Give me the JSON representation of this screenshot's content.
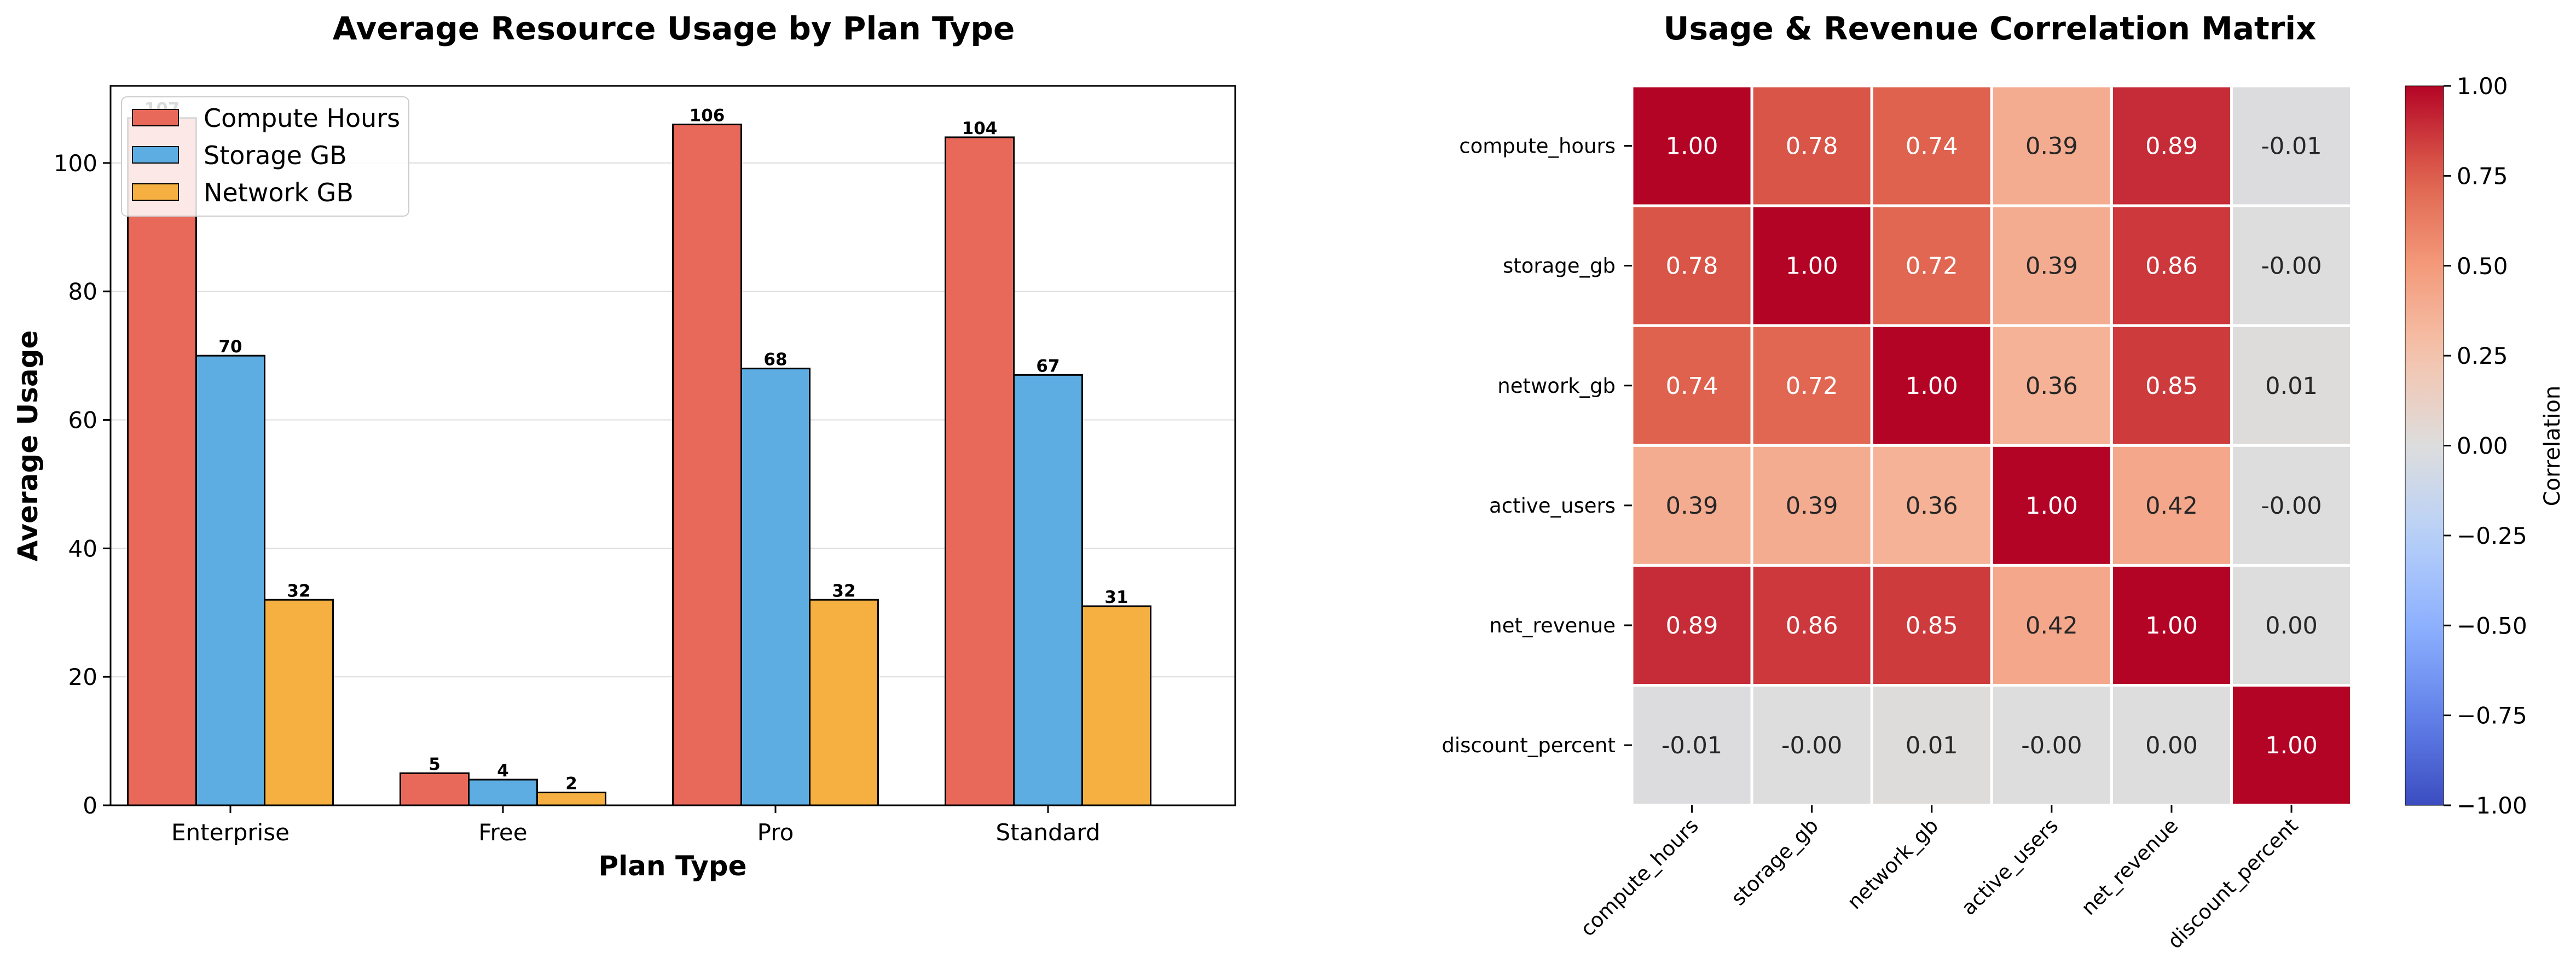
{
  "chart_data": [
    {
      "type": "bar",
      "title": "Average Resource Usage by Plan Type",
      "xlabel": "Plan Type",
      "ylabel": "Average Usage",
      "categories": [
        "Enterprise",
        "Free",
        "Pro",
        "Standard"
      ],
      "series": [
        {
          "name": "Compute Hours",
          "color": "#e8695a",
          "values": [
            107,
            5,
            106,
            104
          ],
          "labels": [
            "107",
            "5",
            "106",
            "104"
          ]
        },
        {
          "name": "Storage GB",
          "color": "#5dade2",
          "values": [
            70,
            4,
            68,
            67
          ],
          "labels": [
            "70",
            "4",
            "68",
            "67"
          ]
        },
        {
          "name": "Network GB",
          "color": "#f5b041",
          "values": [
            32,
            2,
            32,
            31
          ],
          "labels": [
            "32",
            "2",
            "32",
            "31"
          ]
        }
      ],
      "ylim": [
        0,
        112
      ],
      "yticks": [
        0,
        20,
        40,
        60,
        80,
        100
      ],
      "grid": "y",
      "legend": "top-left"
    },
    {
      "type": "heatmap",
      "title": "Usage & Revenue Correlation Matrix",
      "rows": [
        "compute_hours",
        "storage_gb",
        "network_gb",
        "active_users",
        "net_revenue",
        "discount_percent"
      ],
      "cols": [
        "compute_hours",
        "storage_gb",
        "network_gb",
        "active_users",
        "net_revenue",
        "discount_percent"
      ],
      "values": [
        [
          1.0,
          0.78,
          0.74,
          0.39,
          0.89,
          -0.01
        ],
        [
          0.78,
          1.0,
          0.72,
          0.39,
          0.86,
          -0.0
        ],
        [
          0.74,
          0.72,
          1.0,
          0.36,
          0.85,
          0.01
        ],
        [
          0.39,
          0.39,
          0.36,
          1.0,
          0.42,
          -0.0
        ],
        [
          0.89,
          0.86,
          0.85,
          0.42,
          1.0,
          0.0
        ],
        [
          -0.01,
          -0.0,
          0.01,
          -0.0,
          0.0,
          1.0
        ]
      ],
      "cell_labels": [
        [
          "1.00",
          "0.78",
          "0.74",
          "0.39",
          "0.89",
          "-0.01"
        ],
        [
          "0.78",
          "1.00",
          "0.72",
          "0.39",
          "0.86",
          "-0.00"
        ],
        [
          "0.74",
          "0.72",
          "1.00",
          "0.36",
          "0.85",
          "0.01"
        ],
        [
          "0.39",
          "0.39",
          "0.36",
          "1.00",
          "0.42",
          "-0.00"
        ],
        [
          "0.89",
          "0.86",
          "0.85",
          "0.42",
          "1.00",
          "0.00"
        ],
        [
          "-0.01",
          "-0.00",
          "0.01",
          "-0.00",
          "0.00",
          "1.00"
        ]
      ],
      "colormap": "coolwarm",
      "vmin": -1.0,
      "vmax": 1.0,
      "colorbar": {
        "label": "Correlation",
        "ticks": [
          "1.00",
          "0.75",
          "0.50",
          "0.25",
          "0.00",
          "−0.25",
          "−0.50",
          "−0.75",
          "−1.00"
        ]
      }
    }
  ]
}
